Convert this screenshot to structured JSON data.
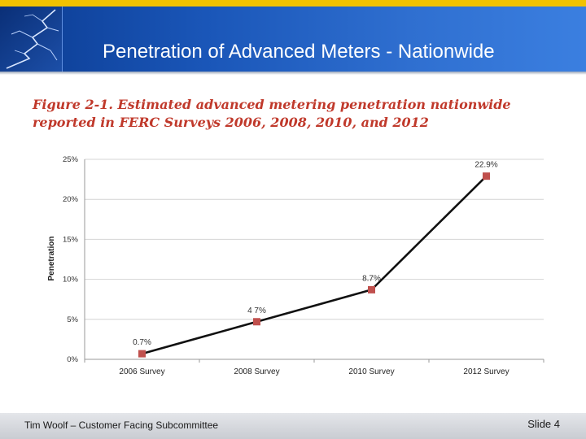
{
  "header": {
    "title": "Penetration of Advanced Meters - Nationwide"
  },
  "figure": {
    "caption": "Figure 2-1. Estimated advanced metering penetration nationwide reported in FERC Surveys 2006, 2008, 2010, and 2012"
  },
  "chart_data": {
    "type": "line",
    "categories": [
      "2006 Survey",
      "2008 Survey",
      "2010 Survey",
      "2012 Survey"
    ],
    "values": [
      0.7,
      4.7,
      8.7,
      22.9
    ],
    "data_labels": [
      "0.7%",
      "4 7%",
      "8.7%",
      "22.9%"
    ],
    "ylabel": "Penetration",
    "ylim": [
      0,
      25
    ],
    "yticks": [
      0,
      5,
      10,
      15,
      20,
      25
    ],
    "ytick_labels": [
      "0%",
      "5%",
      "10%",
      "15%",
      "20%",
      "25%"
    ],
    "grid": true,
    "line_color": "#111111",
    "marker_color": "#c0504d"
  },
  "footer": {
    "presenter": "Tim Woolf – Customer Facing Subcommittee",
    "slide": "Slide 4"
  }
}
